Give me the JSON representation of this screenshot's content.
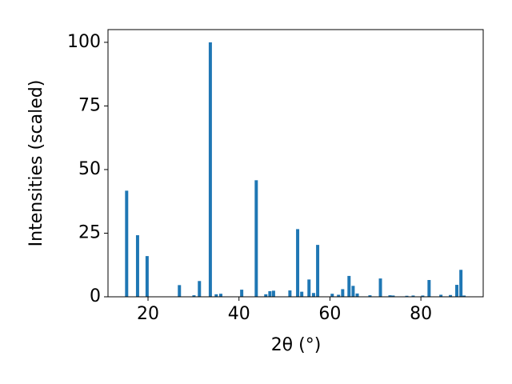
{
  "chart_data": {
    "type": "bar",
    "xlabel": "2θ (°)",
    "ylabel": "Intensities (scaled)",
    "x": [
      15.3,
      17.7,
      19.8,
      26.9,
      30.1,
      31.3,
      33.7,
      35.0,
      36.0,
      40.6,
      43.8,
      45.9,
      46.8,
      47.6,
      51.2,
      52.9,
      53.8,
      55.4,
      56.4,
      57.3,
      60.5,
      61.9,
      62.8,
      64.2,
      65.1,
      66.0,
      68.8,
      71.1,
      73.2,
      73.9,
      76.9,
      78.3,
      80.4,
      81.8,
      84.4,
      86.5,
      87.9,
      88.8,
      89.5
    ],
    "values": [
      41.7,
      24.2,
      16,
      4.6,
      0.6,
      6.2,
      100,
      1,
      1.2,
      2.8,
      45.8,
      1,
      2.2,
      2.4,
      2.5,
      26.6,
      2,
      6.8,
      1.5,
      20.4,
      1.2,
      0.8,
      3,
      8.2,
      4.3,
      1.3,
      0.6,
      7.2,
      0.6,
      0.5,
      0.4,
      0.5,
      0.5,
      6.6,
      0.8,
      0.7,
      4.7,
      10.6,
      0.5
    ],
    "color": "#1f77b4",
    "xlim": [
      11.2,
      93.7
    ],
    "xticks": [
      20,
      40,
      60,
      80
    ],
    "ylim": [
      0,
      105
    ],
    "yticks": [
      0,
      25,
      50,
      75,
      100
    ]
  }
}
